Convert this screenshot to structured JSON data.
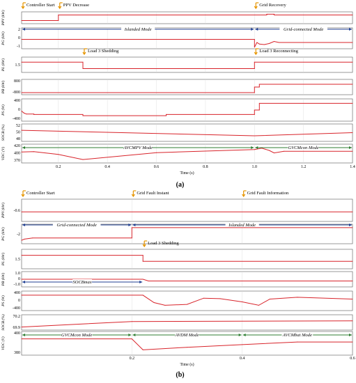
{
  "colors": {
    "trace": "#d8232a",
    "blue_arrow": "#1f3f93",
    "green_arrow": "#2e7d32",
    "annot": "#e69500",
    "grid": "#d9d9d9",
    "frame": "#555555"
  },
  "chart_data": [
    {
      "type": "line",
      "caption": "(a)",
      "xlabel": "Time (s)",
      "xlim": [
        0.05,
        1.4
      ],
      "xticks": [
        "0.2",
        "0.4",
        "0.6",
        "0.8",
        "1.0",
        "1.2",
        "1.4"
      ],
      "events": [
        {
          "label": "Controller Start",
          "x": 0.05
        },
        {
          "label": "PPV Decrease",
          "x": 0.2
        },
        {
          "label": "Grid Recovery",
          "x": 1.0
        },
        {
          "label": "Load 3 Shedding",
          "x": 0.3
        },
        {
          "label": "Load 3 Reconnecting",
          "x": 1.0
        }
      ],
      "panels": [
        {
          "ylabel": "PPV (kW)",
          "yticks": [],
          "series": {
            "x": [
              0.05,
              0.2,
              0.2,
              1.05,
              1.05,
              1.08,
              1.08,
              1.4
            ],
            "y": [
              -0.2,
              -0.2,
              0.5,
              0.5,
              0.6,
              0.6,
              0.5,
              0.5
            ]
          }
        },
        {
          "ylabel": "PG (kW)",
          "yticks": [
            "2",
            "0",
            "-1"
          ],
          "mode_arrows": [
            {
              "label": "Islanded Mode",
              "from": 0.05,
              "to": 1.0
            },
            {
              "label": "Grid-connected Mode",
              "from": 1.0,
              "to": 1.4
            }
          ],
          "series": {
            "x": [
              0.05,
              1.0,
              1.0,
              1.01,
              1.02,
              1.04,
              1.06,
              1.08,
              1.1,
              1.4
            ],
            "y": [
              0,
              0,
              -1.5,
              -0.6,
              -0.9,
              -1.0,
              -0.8,
              -0.4,
              -0.6,
              -0.6
            ]
          }
        },
        {
          "ylabel": "PL (kW)",
          "yticks": [
            "1.5"
          ],
          "series": {
            "x": [
              0.05,
              0.3,
              0.3,
              1.0,
              1.0,
              1.4
            ],
            "y": [
              1.5,
              1.5,
              1.0,
              1.0,
              1.5,
              1.5
            ]
          }
        },
        {
          "ylabel": "PB (kW)",
          "yticks": [
            "800",
            "-800"
          ],
          "series": {
            "x": [
              0.05,
              1.0,
              1.0,
              1.02,
              1.02,
              1.4
            ],
            "y": [
              -800,
              -800,
              0,
              0,
              400,
              400
            ]
          }
        },
        {
          "ylabel": "PS (W)",
          "yticks": [
            "400",
            "0",
            "-400"
          ],
          "series": {
            "x": [
              0.05,
              0.06,
              0.07,
              0.1,
              0.1,
              0.3,
              0.3,
              0.64,
              0.64,
              1.0,
              1.0,
              1.02,
              1.02,
              1.4
            ],
            "y": [
              -50,
              -150,
              -200,
              -200,
              -220,
              -220,
              -280,
              -280,
              -220,
              -220,
              0,
              0,
              330,
              330
            ]
          }
        },
        {
          "ylabel": "SOCB (%)",
          "yticks": [
            "52",
            "50",
            "48"
          ],
          "series": {
            "x": [
              0.05,
              1.0,
              1.4
            ],
            "y": [
              50.6,
              49.2,
              50.0
            ]
          }
        },
        {
          "ylabel": "VDC (V)",
          "yticks": [
            "420",
            "400",
            "370"
          ],
          "mode_arrows": [
            {
              "label": "AVCMPV Mode",
              "from": 0.05,
              "to": 1.0
            },
            {
              "label": "GVCMcon Mode",
              "from": 1.0,
              "to": 1.4
            }
          ],
          "series": {
            "x": [
              0.05,
              0.1,
              0.2,
              0.3,
              0.6,
              1.0,
              1.03,
              1.06,
              1.08,
              1.12,
              1.4
            ],
            "y": [
              400,
              401,
              392,
              376,
              398,
              408,
              412,
              405,
              397,
              402,
              402
            ]
          }
        }
      ]
    },
    {
      "type": "line",
      "caption": "(b)",
      "xlabel": "Time (s)",
      "xlim": [
        0.0,
        0.6
      ],
      "xticks": [
        "0.2",
        "0.4",
        "0.6"
      ],
      "events": [
        {
          "label": "Controller Start",
          "x": 0.0
        },
        {
          "label": "Grid Fault Instant",
          "x": 0.2
        },
        {
          "label": "Grid Fault Information",
          "x": 0.4
        },
        {
          "label": "Load 3 Shedding",
          "x": 0.22
        }
      ],
      "panels": [
        {
          "ylabel": "PPV (kW)",
          "yticks": [
            "-0.6"
          ],
          "series": {
            "x": [
              0.0,
              0.6
            ],
            "y": [
              -0.6,
              -0.6
            ]
          }
        },
        {
          "ylabel": "PG (kW)",
          "yticks": [
            "-2"
          ],
          "mode_arrows": [
            {
              "label": "Grid-connected Mode",
              "from": 0.0,
              "to": 0.2
            },
            {
              "label": "Islanded Mode",
              "from": 0.2,
              "to": 0.6
            }
          ],
          "series": {
            "x": [
              0.0,
              0.005,
              0.02,
              0.2,
              0.2,
              0.6
            ],
            "y": [
              -2.2,
              -2.0,
              -1.8,
              -1.8,
              0,
              0
            ]
          }
        },
        {
          "ylabel": "PL (kW)",
          "yticks": [
            "1.5"
          ],
          "series": {
            "x": [
              0.0,
              0.22,
              0.22,
              0.6
            ],
            "y": [
              1.5,
              1.5,
              1.1,
              1.1
            ]
          }
        },
        {
          "ylabel": "PB (kW)",
          "yticks": [
            "1.0",
            "0",
            "-1.0"
          ],
          "mode_arrows": [
            {
              "label": "SOCBmax",
              "from": 0.0,
              "to": 0.22
            }
          ],
          "series": {
            "x": [
              0.0,
              0.22,
              0.23,
              0.6
            ],
            "y": [
              0.0,
              0.0,
              -0.3,
              -0.3
            ]
          }
        },
        {
          "ylabel": "PS (W)",
          "yticks": [
            "400",
            "0",
            "-400"
          ],
          "series": {
            "x": [
              0.0,
              0.22,
              0.24,
              0.26,
              0.3,
              0.33,
              0.36,
              0.4,
              0.43,
              0.45,
              0.5,
              0.6
            ],
            "y": [
              320,
              320,
              -100,
              -250,
              -200,
              150,
              120,
              -60,
              -250,
              100,
              200,
              100
            ]
          }
        },
        {
          "ylabel": "SOCB (%)",
          "yticks": [
            "70.2",
            "69.9"
          ],
          "series": {
            "x": [
              0.0,
              0.2,
              0.6
            ],
            "y": [
              69.9,
              70.08,
              70.1
            ]
          }
        },
        {
          "ylabel": "VDC (V)",
          "yticks": [
            "400",
            "380"
          ],
          "mode_arrows": [
            {
              "label": "GVCMcon Mode",
              "from": 0.0,
              "to": 0.2
            },
            {
              "label": "AVDM Mode",
              "from": 0.2,
              "to": 0.4
            },
            {
              "label": "AVCMbat Mode",
              "from": 0.4,
              "to": 0.6
            }
          ],
          "series": {
            "x": [
              0.0,
              0.2,
              0.22,
              0.3,
              0.4,
              0.5,
              0.6
            ],
            "y": [
              401,
              401,
              380,
              385,
              390,
              395,
              395
            ]
          }
        }
      ]
    }
  ]
}
